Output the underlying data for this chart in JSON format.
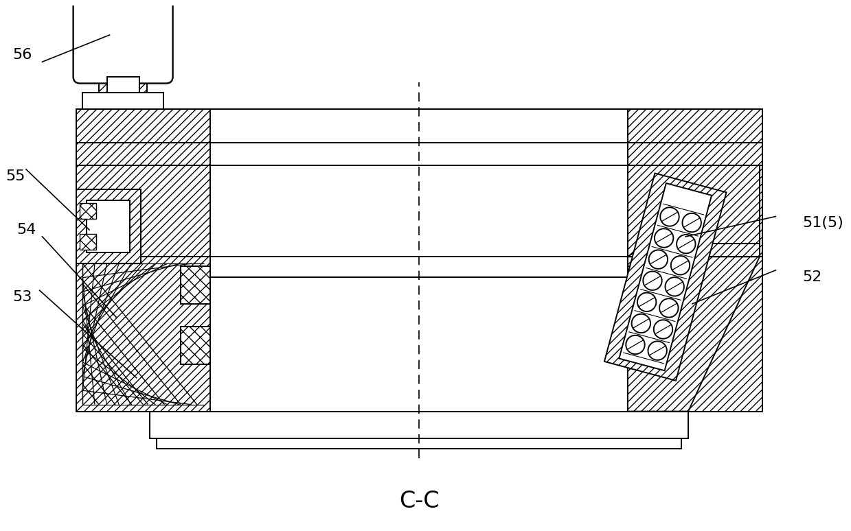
{
  "title": "C-C",
  "title_fontsize": 24,
  "line_color": "#000000",
  "bg_color": "#ffffff",
  "label_fontsize": 16,
  "lw": 1.4
}
